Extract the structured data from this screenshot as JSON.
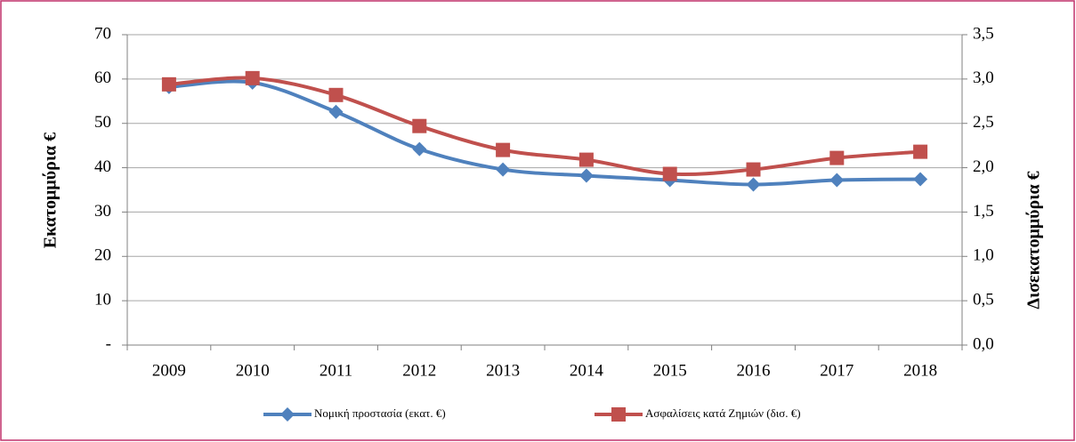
{
  "chart_data": {
    "type": "line",
    "categories": [
      "2009",
      "2010",
      "2011",
      "2012",
      "2013",
      "2014",
      "2015",
      "2016",
      "2017",
      "2018"
    ],
    "series": [
      {
        "name": "Νομική προστασία (εκατ. €)",
        "color": "#4f81bd",
        "marker": "diamond",
        "values": [
          58.2,
          59.2,
          52.6,
          44.2,
          39.6,
          38.2,
          37.2,
          36.2,
          37.2,
          37.4
        ]
      },
      {
        "name": "Ασφαλίσεις κατά Ζημιών (δισ. €)",
        "color": "#c0504d",
        "marker": "square",
        "axis": "y2",
        "values": [
          2.94,
          3.01,
          2.82,
          2.47,
          2.2,
          2.09,
          1.93,
          1.98,
          2.11,
          2.18
        ]
      }
    ],
    "ylabel": "Εκατομμύρια  €",
    "y2label": "Δισεκατομμύρια €",
    "ylim": [
      0,
      70
    ],
    "yticks": [
      {
        "value": 0,
        "label": "-"
      },
      10,
      20,
      30,
      40,
      50,
      60,
      70
    ],
    "y2lim": [
      0,
      3.5
    ],
    "y2ticks": [
      {
        "value": 0,
        "label": "0,0"
      },
      {
        "value": 0.5,
        "label": "0,5"
      },
      {
        "value": 1,
        "label": "1,0"
      },
      {
        "value": 1.5,
        "label": "1,5"
      },
      {
        "value": 2,
        "label": "2,0"
      },
      {
        "value": 2.5,
        "label": "2,5"
      },
      {
        "value": 3,
        "label": "3,0"
      },
      {
        "value": 3.5,
        "label": "3,5"
      }
    ],
    "grid": true,
    "legend": "bottom"
  }
}
